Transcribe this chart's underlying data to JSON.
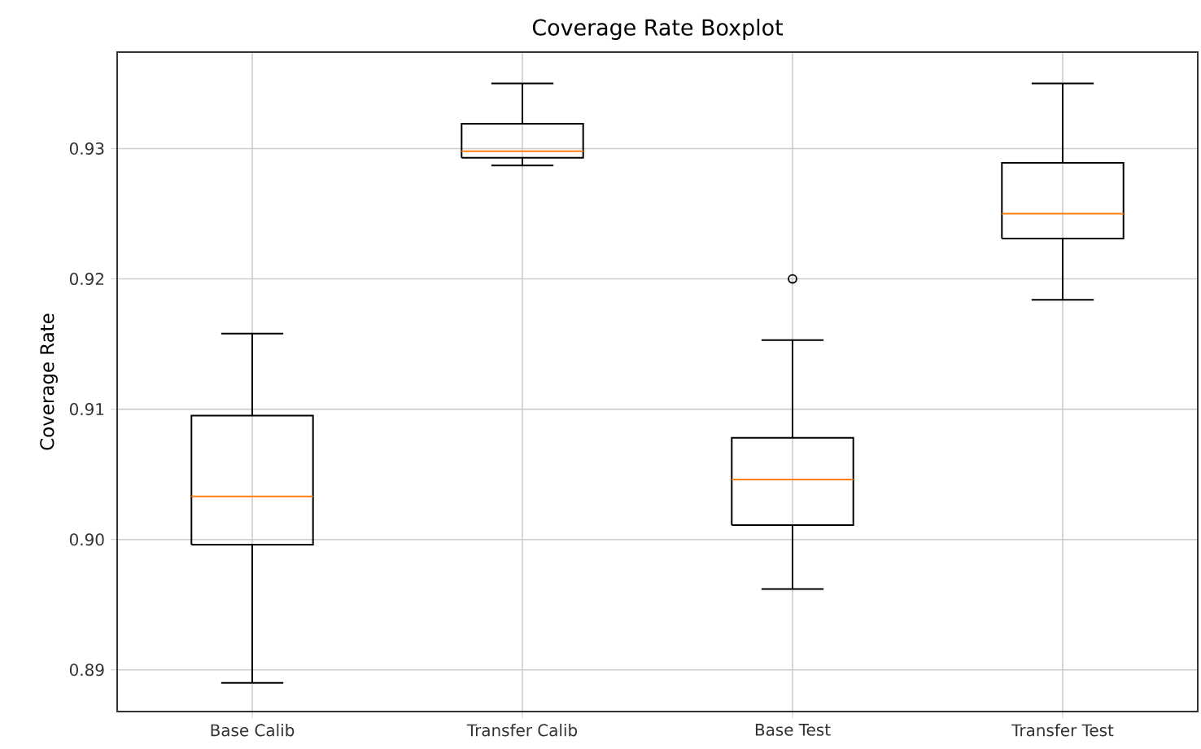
{
  "chart_data": {
    "type": "box",
    "title": "Coverage Rate Boxplot",
    "ylabel": "Coverage Rate",
    "categories": [
      "Base Calib",
      "Transfer Calib",
      "Base Test",
      "Transfer Test"
    ],
    "boxes": [
      {
        "low": 0.889,
        "q1": 0.8996,
        "median": 0.9033,
        "q3": 0.9095,
        "high": 0.9158
      },
      {
        "low": 0.9287,
        "q1": 0.9293,
        "median": 0.9298,
        "q3": 0.9319,
        "high": 0.935
      },
      {
        "low": 0.8962,
        "q1": 0.9011,
        "median": 0.9046,
        "q3": 0.9078,
        "high": 0.9153,
        "outliers": [
          0.92
        ]
      },
      {
        "low": 0.9184,
        "q1": 0.9231,
        "median": 0.925,
        "q3": 0.9289,
        "high": 0.935
      }
    ],
    "color": "#000000",
    "ylim": [
      0.8868,
      0.9374
    ],
    "yticks": [
      0.89,
      {
        "value": 0.9,
        "label": "0.90"
      },
      0.91,
      0.92,
      0.93
    ],
    "grid": true
  }
}
